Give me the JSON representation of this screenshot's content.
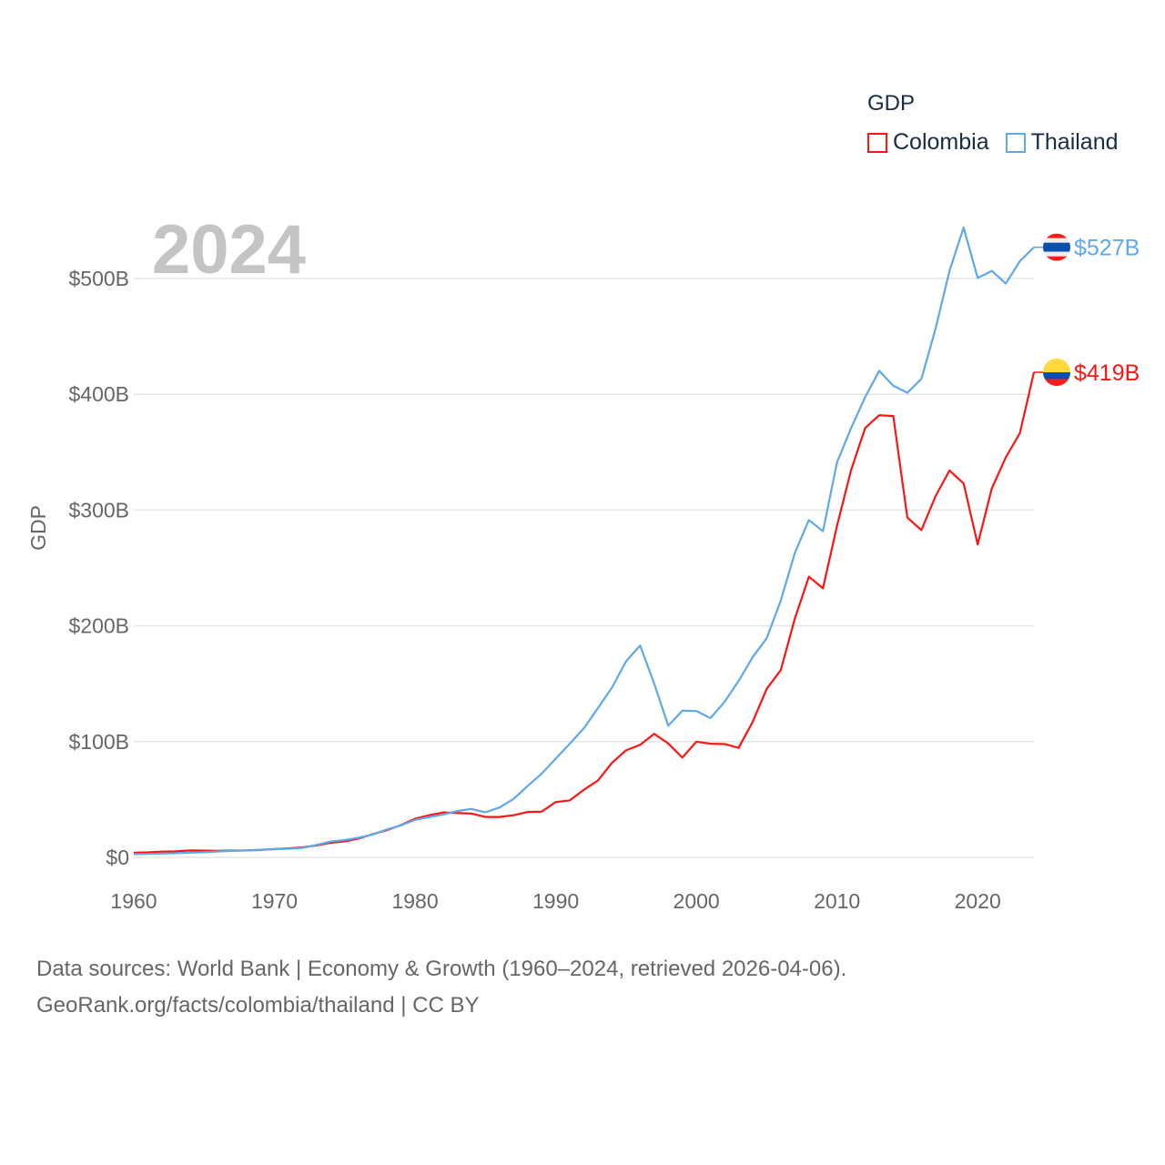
{
  "chart_data": {
    "type": "line",
    "title": "",
    "year_label": "2024",
    "ylabel": "GDP",
    "xlabel": "",
    "xlim": [
      1960,
      2024
    ],
    "ylim": [
      0,
      560
    ],
    "xticks": [
      1960,
      1970,
      1980,
      1990,
      2000,
      2010,
      2020
    ],
    "xtick_labels": [
      "1960",
      "1970",
      "1980",
      "1990",
      "2000",
      "2010",
      "2020"
    ],
    "yticks": [
      0,
      100,
      200,
      300,
      400,
      500
    ],
    "ytick_labels": [
      "$0",
      "$100B",
      "$200B",
      "$300B",
      "$400B",
      "$500B"
    ],
    "grid": true,
    "legend": {
      "title": "GDP",
      "placement": "top-right"
    },
    "series": [
      {
        "name": "Colombia",
        "color": "#ff1414",
        "end_label": "$419B",
        "values": [
          4.0,
          4.3,
          4.9,
          5.2,
          6.0,
          5.8,
          5.6,
          5.9,
          6.0,
          6.4,
          7.2,
          7.8,
          8.7,
          10.3,
          12.6,
          13.8,
          16.3,
          20.1,
          23.5,
          27.9,
          33.4,
          36.4,
          38.8,
          38.3,
          37.9,
          34.9,
          34.9,
          36.4,
          39.2,
          39.5,
          47.8,
          49.2,
          58.4,
          66.4,
          81.7,
          92.5,
          97.2,
          106.7,
          98.4,
          86.2,
          99.9,
          98.2,
          97.9,
          94.6,
          117.0,
          145.6,
          161.8,
          206.2,
          242.5,
          232.4,
          286.5,
          334.5,
          370.9,
          381.9,
          381.2,
          293.5,
          282.7,
          311.9,
          334.2,
          323.0,
          270.3,
          318.5,
          345.6,
          366.4,
          419.0
        ]
      },
      {
        "name": "Thailand",
        "color": "#5ea8ec",
        "end_label": "$527B",
        "values": [
          2.8,
          3.0,
          3.3,
          3.6,
          4.1,
          4.4,
          5.1,
          5.6,
          6.0,
          6.6,
          7.1,
          7.4,
          8.2,
          10.8,
          13.7,
          15.0,
          17.0,
          19.8,
          24.1,
          27.7,
          32.4,
          34.8,
          37.0,
          40.0,
          41.8,
          38.9,
          43.1,
          50.5,
          61.7,
          72.3,
          85.3,
          98.2,
          111.5,
          128.9,
          146.7,
          169.3,
          183.0,
          150.2,
          113.7,
          126.7,
          126.4,
          120.3,
          134.3,
          152.3,
          172.9,
          189.3,
          221.8,
          262.9,
          291.4,
          281.7,
          341.1,
          370.8,
          397.6,
          420.3,
          407.3,
          401.3,
          413.4,
          456.4,
          506.8,
          544.0,
          500.5,
          506.6,
          495.6,
          515.0,
          527.0
        ]
      }
    ]
  },
  "source": {
    "line1": "Data sources: World Bank | Economy & Growth (1960–2024, retrieved 2026-04-06).",
    "line2": "GeoRank.org/facts/colombia/thailand | CC BY"
  }
}
